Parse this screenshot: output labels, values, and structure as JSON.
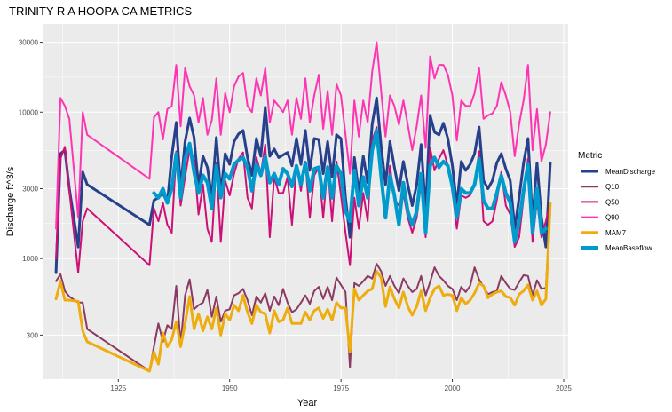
{
  "chart_data": {
    "type": "line",
    "title": "TRINITY R A HOOPA CA  METRICS",
    "xlabel": "Year",
    "ylabel": "Discharge ft^3/s",
    "x_scale": "linear",
    "y_scale": "log10",
    "xlim": [
      1908,
      2026
    ],
    "ylim": [
      150,
      40000
    ],
    "x_ticks": [
      1925,
      1950,
      1975,
      2000,
      2025
    ],
    "x_tick_labels": [
      "1925",
      "1950",
      "1975",
      "2000",
      "2025"
    ],
    "y_ticks": [
      300,
      1000,
      3000,
      10000,
      30000
    ],
    "y_tick_labels": [
      "300",
      "1000",
      "3000",
      "10000",
      "30000"
    ],
    "grid": true,
    "background": "#ebebeb",
    "legend": {
      "title": "Metric",
      "position": "right"
    },
    "years": [
      1911,
      1912,
      1913,
      1914,
      1916,
      1917,
      1918,
      1932,
      1933,
      1934,
      1935,
      1936,
      1937,
      1938,
      1939,
      1940,
      1941,
      1942,
      1943,
      1944,
      1945,
      1946,
      1947,
      1948,
      1949,
      1950,
      1951,
      1952,
      1953,
      1954,
      1955,
      1956,
      1957,
      1958,
      1959,
      1960,
      1961,
      1962,
      1963,
      1964,
      1965,
      1966,
      1967,
      1968,
      1969,
      1970,
      1971,
      1972,
      1973,
      1974,
      1975,
      1976,
      1977,
      1978,
      1979,
      1980,
      1981,
      1982,
      1983,
      1984,
      1985,
      1986,
      1987,
      1988,
      1989,
      1990,
      1991,
      1992,
      1993,
      1994,
      1995,
      1996,
      1997,
      1998,
      1999,
      2000,
      2001,
      2002,
      2003,
      2004,
      2005,
      2006,
      2007,
      2008,
      2009,
      2010,
      2011,
      2012,
      2013,
      2014,
      2015,
      2016,
      2017,
      2018,
      2019,
      2020,
      2021,
      2022
    ],
    "series": [
      {
        "name": "MeanDischarge",
        "color": "#27408b",
        "width": 3,
        "values": [
          800,
          5200,
          5500,
          3000,
          1200,
          3900,
          3200,
          1700,
          2500,
          2600,
          2800,
          2400,
          5000,
          8500,
          3000,
          6300,
          9100,
          6700,
          3100,
          5000,
          4200,
          2600,
          6700,
          2800,
          5200,
          4400,
          6300,
          7100,
          7500,
          4900,
          3700,
          6600,
          5000,
          10800,
          5000,
          5600,
          4900,
          5100,
          5300,
          4300,
          6600,
          4400,
          7500,
          4000,
          6600,
          6500,
          3800,
          6300,
          3600,
          7000,
          6600,
          2600,
          1400,
          4900,
          2800,
          5000,
          3300,
          8300,
          12500,
          5900,
          3200,
          6300,
          4200,
          2900,
          4600,
          3200,
          2300,
          3200,
          6000,
          2100,
          9500,
          7300,
          7000,
          8400,
          6600,
          4300,
          2300,
          4600,
          4000,
          4400,
          5200,
          7900,
          3400,
          3000,
          3400,
          4500,
          5200,
          4100,
          3400,
          1600,
          2600,
          4500,
          6600,
          1800,
          4500,
          1900,
          1200,
          4500
        ]
      },
      {
        "name": "Q10",
        "color": "#8b3a62",
        "width": 2,
        "values": [
          700,
          780,
          600,
          550,
          500,
          500,
          330,
          170,
          250,
          360,
          270,
          350,
          330,
          650,
          260,
          560,
          720,
          450,
          480,
          500,
          610,
          400,
          550,
          370,
          440,
          450,
          560,
          580,
          620,
          520,
          410,
          550,
          500,
          580,
          440,
          550,
          480,
          620,
          500,
          430,
          450,
          500,
          560,
          490,
          600,
          640,
          530,
          640,
          520,
          740,
          660,
          590,
          180,
          680,
          650,
          700,
          760,
          730,
          920,
          820,
          650,
          760,
          650,
          580,
          730,
          650,
          590,
          620,
          760,
          560,
          690,
          870,
          760,
          710,
          650,
          620,
          520,
          640,
          590,
          650,
          870,
          720,
          640,
          570,
          590,
          600,
          760,
          680,
          620,
          610,
          690,
          770,
          760,
          560,
          710,
          620,
          630,
          2300
        ]
      },
      {
        "name": "Q50",
        "color": "#cd1076",
        "width": 2,
        "values": [
          1000,
          4800,
          5800,
          2900,
          800,
          1800,
          2200,
          900,
          2200,
          1800,
          2400,
          1700,
          1500,
          5400,
          2300,
          3600,
          5600,
          4700,
          2000,
          3200,
          1600,
          1300,
          4500,
          1300,
          3400,
          2700,
          3800,
          4800,
          5300,
          2600,
          2200,
          4900,
          3800,
          6000,
          1400,
          3600,
          2800,
          2800,
          3600,
          1700,
          4300,
          2900,
          4600,
          1900,
          3700,
          4200,
          1900,
          4300,
          1800,
          4600,
          2700,
          1500,
          900,
          2600,
          1600,
          2800,
          1800,
          6400,
          7900,
          3400,
          1900,
          4300,
          2500,
          2300,
          2800,
          1900,
          1500,
          1900,
          3300,
          1400,
          5700,
          4000,
          4800,
          5500,
          4300,
          2900,
          1600,
          2700,
          2600,
          2700,
          3200,
          5400,
          1800,
          1700,
          1800,
          2500,
          3900,
          2300,
          2000,
          1200,
          1400,
          2600,
          4800,
          1300,
          2500,
          1400,
          1800,
          2400
        ]
      },
      {
        "name": "Q90",
        "color": "#ff34b3",
        "width": 2,
        "values": [
          1600,
          12500,
          11000,
          9000,
          1900,
          10000,
          7000,
          3500,
          9200,
          10000,
          6500,
          10500,
          11000,
          21000,
          8000,
          20000,
          15000,
          13000,
          8500,
          12500,
          7000,
          8800,
          17000,
          7000,
          13500,
          10000,
          15000,
          17500,
          18500,
          11000,
          10000,
          17000,
          13000,
          20000,
          8500,
          12000,
          11000,
          10000,
          12000,
          7000,
          12500,
          9000,
          17000,
          8500,
          13000,
          18000,
          7700,
          14000,
          7000,
          15500,
          13000,
          7000,
          3800,
          12000,
          6800,
          12000,
          8500,
          19000,
          30000,
          14000,
          6800,
          13000,
          11000,
          8200,
          12000,
          8200,
          5500,
          8000,
          13000,
          5700,
          24000,
          17000,
          21000,
          21000,
          18000,
          13000,
          6400,
          12000,
          11000,
          11000,
          13500,
          20000,
          9000,
          9500,
          9800,
          11000,
          16000,
          13000,
          10000,
          5000,
          8300,
          12000,
          21000,
          5500,
          10500,
          4600,
          6000,
          10000
        ]
      },
      {
        "name": "MAM7",
        "color": "#eead0e",
        "width": 3,
        "values": [
          530,
          700,
          520,
          520,
          510,
          320,
          270,
          170,
          230,
          190,
          310,
          250,
          280,
          370,
          250,
          360,
          550,
          330,
          420,
          320,
          400,
          330,
          460,
          300,
          420,
          380,
          480,
          440,
          560,
          430,
          360,
          480,
          430,
          420,
          310,
          440,
          370,
          380,
          460,
          360,
          360,
          360,
          430,
          380,
          440,
          460,
          390,
          450,
          380,
          500,
          460,
          460,
          230,
          620,
          520,
          560,
          600,
          620,
          820,
          740,
          470,
          640,
          530,
          460,
          590,
          470,
          410,
          470,
          600,
          440,
          540,
          620,
          650,
          560,
          570,
          560,
          440,
          540,
          490,
          520,
          580,
          680,
          650,
          540,
          570,
          590,
          600,
          550,
          540,
          480,
          570,
          600,
          660,
          520,
          600,
          480,
          530,
          2400
        ]
      },
      {
        "name": "MeanBaseflow",
        "color": "#009acd",
        "width": 4,
        "values": [
          null,
          null,
          null,
          null,
          null,
          null,
          null,
          null,
          2800,
          2600,
          3000,
          2400,
          3000,
          5200,
          2600,
          4800,
          6100,
          3900,
          2800,
          3700,
          3300,
          2200,
          4300,
          2600,
          3800,
          3500,
          4400,
          4700,
          4900,
          4200,
          2900,
          4400,
          3700,
          5000,
          3300,
          3800,
          3200,
          4100,
          3800,
          3100,
          4300,
          3200,
          4500,
          2900,
          4100,
          4200,
          2600,
          4200,
          2600,
          4300,
          3800,
          2100,
          1800,
          4000,
          2300,
          3600,
          2600,
          5500,
          7500,
          3700,
          1900,
          3700,
          2700,
          1700,
          3300,
          2100,
          1700,
          2100,
          3800,
          1500,
          4300,
          4900,
          4200,
          4600,
          4300,
          3100,
          1900,
          3000,
          2800,
          2800,
          3200,
          4800,
          2500,
          2200,
          2200,
          2800,
          3700,
          2800,
          2400,
          1300,
          1800,
          2900,
          4400,
          1500,
          3000,
          1500,
          1600,
          null
        ]
      }
    ]
  }
}
